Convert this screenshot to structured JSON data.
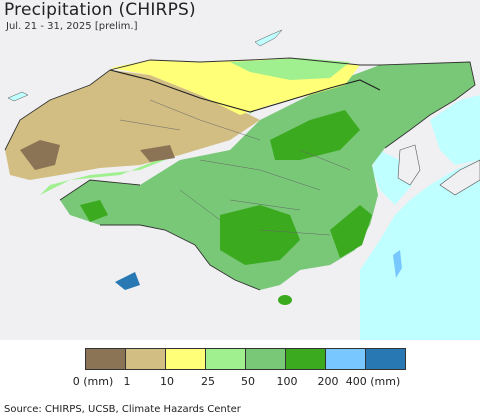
{
  "title": "Precipitation (CHIRPS)",
  "subtitle": "Jul. 21 - 31, 2025 [prelim.]",
  "source": "Source: CHIRPS, UCSB, Climate Hazards Center",
  "legend": {
    "colors": [
      "#8B7355",
      "#D2BE82",
      "#FFFF78",
      "#A0F090",
      "#78C878",
      "#3CAA1E",
      "#78C8FF",
      "#2878B4"
    ],
    "labels": [
      "0 (mm)",
      "1",
      "10",
      "25",
      "50",
      "100",
      "200",
      "400 (mm)"
    ]
  },
  "colors": {
    "ocean": "#BFFFFF",
    "outside_land": "#F0EFF2",
    "border": "#555555"
  }
}
